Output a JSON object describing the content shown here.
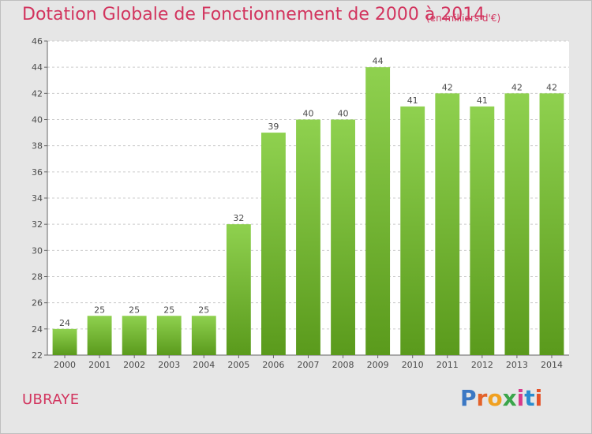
{
  "title": "Dotation Globale de Fonctionnement de 2000 à 2014",
  "subtitle": "(en milliers d'€)",
  "commune": "UBRAYE",
  "brand": {
    "text": "Proxiti",
    "colors": [
      "#3b78c4",
      "#e3622a",
      "#f0a020",
      "#3aa54a",
      "#d83a8a",
      "#2a8cd0",
      "#e5532a"
    ]
  },
  "colors": {
    "title": "#d2345e",
    "bar_top": "#8fd14f",
    "bar_bottom": "#5a9a1c",
    "grid": "#cccccc",
    "plot_bg": "#ffffff",
    "background": "#e6e6e6"
  },
  "chart_data": {
    "type": "bar",
    "categories": [
      "2000",
      "2001",
      "2002",
      "2003",
      "2004",
      "2005",
      "2006",
      "2007",
      "2008",
      "2009",
      "2010",
      "2011",
      "2012",
      "2013",
      "2014"
    ],
    "values": [
      24,
      25,
      25,
      25,
      25,
      32,
      39,
      40,
      40,
      44,
      41,
      42,
      41,
      42,
      42
    ],
    "yticks": [
      22,
      24,
      26,
      28,
      30,
      32,
      34,
      36,
      38,
      40,
      42,
      44,
      46
    ],
    "ylim": [
      22,
      46
    ],
    "grid": true,
    "legend": "none"
  }
}
